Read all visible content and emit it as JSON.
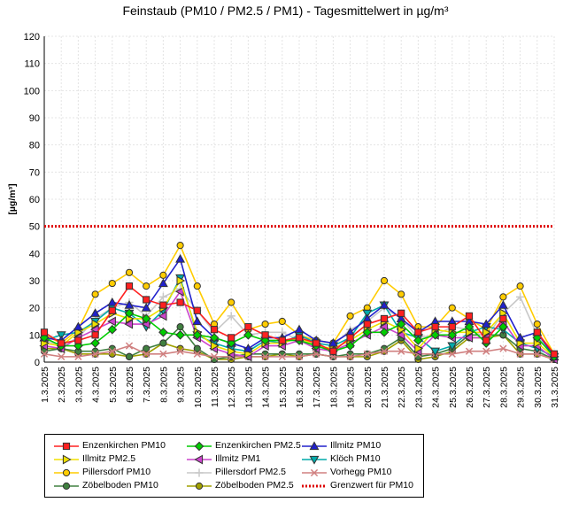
{
  "chart_data": {
    "type": "line",
    "title": "Feinstaub (PM10 / PM2.5 / PM1) -  Tagesmittelwert in µg/m³",
    "ylabel": "[µg/m³]",
    "xlabel": "",
    "ylim": [
      0,
      120
    ],
    "yticks": [
      0,
      10,
      20,
      30,
      40,
      50,
      60,
      70,
      80,
      90,
      100,
      110,
      120
    ],
    "grid": true,
    "legend_position": "bottom",
    "categories": [
      "1.3.2025",
      "2.3.2025",
      "3.3.2025",
      "4.3.2025",
      "5.3.2025",
      "6.3.2025",
      "7.3.2025",
      "8.3.2025",
      "9.3.2025",
      "10.3.2025",
      "11.3.2025",
      "12.3.2025",
      "13.3.2025",
      "14.3.2025",
      "15.3.2025",
      "16.3.2025",
      "17.3.2025",
      "18.3.2025",
      "19.3.2025",
      "20.3.2025",
      "21.3.2025",
      "22.3.2025",
      "23.3.2025",
      "24.3.2025",
      "25.3.2025",
      "26.3.2025",
      "27.3.2025",
      "28.3.2025",
      "29.3.2025",
      "30.3.2025",
      "31.3.2025"
    ],
    "series": [
      {
        "name": "Enzenkirchen PM10",
        "color": "#ff2020",
        "marker": "square",
        "values": [
          11,
          7,
          8,
          10,
          19,
          28,
          23,
          21,
          22,
          19,
          12,
          9,
          13,
          10,
          8,
          9,
          7,
          4,
          9,
          14,
          16,
          18,
          11,
          13,
          13,
          17,
          8,
          16,
          null,
          11,
          3
        ]
      },
      {
        "name": "Enzenkirchen PM2.5",
        "color": "#00cc00",
        "marker": "diamond",
        "values": [
          9,
          6,
          6,
          7,
          12,
          18,
          16,
          11,
          10,
          10,
          9,
          7,
          10,
          8,
          8,
          8,
          6,
          4,
          6,
          11,
          11,
          14,
          8,
          10,
          10,
          13,
          7,
          13,
          null,
          9,
          2
        ]
      },
      {
        "name": "Illmitz PM10",
        "color": "#2020cc",
        "marker": "triangle-up",
        "values": [
          9,
          8,
          13,
          18,
          22,
          21,
          20,
          29,
          38,
          15,
          9,
          7,
          5,
          9,
          9,
          12,
          8,
          7,
          11,
          16,
          21,
          16,
          11,
          15,
          15,
          15,
          14,
          21,
          9,
          11,
          2
        ]
      },
      {
        "name": "Illmitz PM2.5",
        "color": "#f0e000",
        "marker": "triangle-right",
        "values": [
          7,
          6,
          11,
          14,
          18,
          16,
          16,
          20,
          30,
          11,
          6,
          4,
          3,
          7,
          7,
          9,
          6,
          5,
          8,
          12,
          15,
          12,
          5,
          12,
          11,
          11,
          11,
          18,
          7,
          7,
          2
        ]
      },
      {
        "name": "Illmitz PM1",
        "color": "#cc44cc",
        "marker": "triangle-left",
        "values": [
          6,
          5,
          9,
          12,
          15,
          14,
          14,
          17,
          26,
          9,
          5,
          3,
          2,
          6,
          6,
          8,
          5,
          4,
          7,
          10,
          13,
          10,
          4,
          10,
          9,
          9,
          9,
          15,
          6,
          6,
          1
        ]
      },
      {
        "name": "Klöch PM10",
        "color": "#00aaaa",
        "marker": "triangle-down",
        "values": [
          8,
          10,
          11,
          15,
          20,
          18,
          13,
          19,
          31,
          10,
          7,
          5,
          4,
          8,
          7,
          10,
          7,
          6,
          9,
          18,
          21,
          11,
          9,
          4,
          6,
          11,
          13,
          12,
          7,
          5,
          2
        ]
      },
      {
        "name": "Pillersdorf PM10",
        "color": "#ffcc00",
        "marker": "circle",
        "values": [
          10,
          7,
          12,
          25,
          29,
          33,
          28,
          32,
          43,
          28,
          14,
          22,
          12,
          14,
          15,
          10,
          8,
          7,
          17,
          20,
          30,
          25,
          13,
          13,
          20,
          16,
          12,
          24,
          28,
          14,
          3
        ]
      },
      {
        "name": "Pillersdorf PM2.5",
        "color": "#c8c8c8",
        "marker": "plus",
        "values": [
          8,
          6,
          9,
          16,
          20,
          22,
          17,
          24,
          27,
          19,
          11,
          17,
          10,
          11,
          11,
          8,
          7,
          6,
          12,
          15,
          20,
          16,
          9,
          10,
          13,
          12,
          9,
          18,
          24,
          10,
          2
        ]
      },
      {
        "name": "Vorhegg PM10",
        "color": "#d08080",
        "marker": "cross",
        "values": [
          3,
          2,
          2,
          3,
          4,
          6,
          3,
          3,
          4,
          3,
          2,
          2,
          2,
          2,
          2,
          2,
          3,
          2,
          2,
          3,
          4,
          4,
          3,
          3,
          3,
          4,
          4,
          5,
          3,
          3,
          1
        ]
      },
      {
        "name": "Zöbelboden PM10",
        "color": "#408040",
        "marker": "circle",
        "values": [
          4,
          5,
          4,
          4,
          5,
          2,
          5,
          7,
          13,
          5,
          1,
          2,
          3,
          3,
          3,
          3,
          3,
          2,
          3,
          3,
          5,
          9,
          2,
          3,
          5,
          10,
          10,
          10,
          5,
          4,
          1
        ]
      },
      {
        "name": "Zöbelboden PM2.5",
        "color": "#a0a000",
        "marker": "circle",
        "values": [
          5,
          5,
          3,
          3,
          3,
          2,
          3,
          7,
          5,
          4,
          1,
          1,
          2,
          2,
          3,
          2,
          3,
          2,
          2,
          2,
          4,
          8,
          1,
          2,
          4,
          9,
          9,
          10,
          3,
          3,
          1
        ]
      }
    ],
    "threshold": {
      "name": "Grenzwert für PM10",
      "value": 50,
      "color": "#dd0000"
    }
  },
  "legend": {
    "items": [
      "Enzenkirchen PM10",
      "Enzenkirchen PM2.5",
      "Illmitz PM10",
      "Illmitz PM2.5",
      "Illmitz PM1",
      "Klöch PM10",
      "Pillersdorf PM10",
      "Pillersdorf PM2.5",
      "Vorhegg PM10",
      "Zöbelboden PM10",
      "Zöbelboden PM2.5",
      "Grenzwert für PM10"
    ]
  }
}
